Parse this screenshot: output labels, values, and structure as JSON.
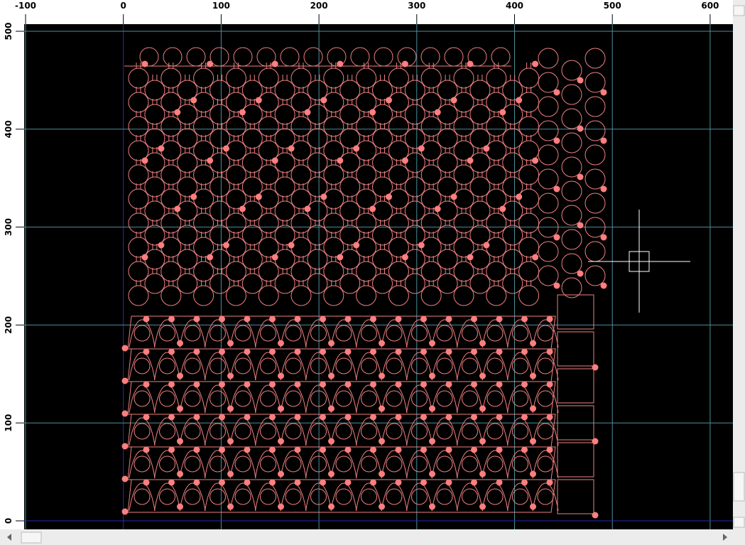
{
  "x_ruler": {
    "labels": [
      "-100",
      "0",
      "100",
      "200",
      "300",
      "400",
      "500",
      "600"
    ]
  },
  "y_ruler": {
    "labels": [
      "500",
      "400",
      "300",
      "200",
      "100",
      "0"
    ]
  }
}
